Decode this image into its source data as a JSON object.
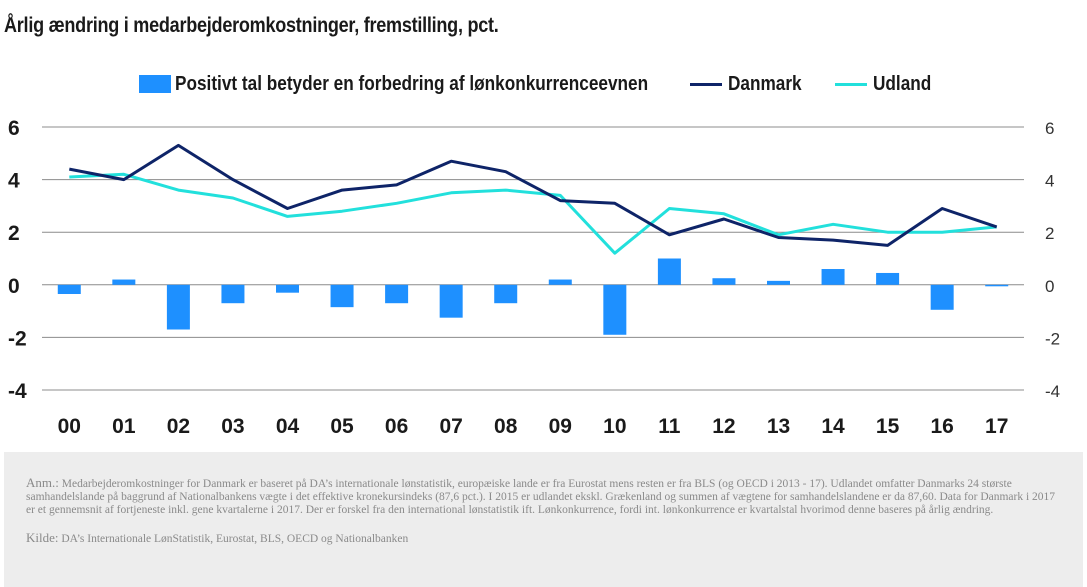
{
  "title": "Årlig ændring i medarbejderomkostninger, fremstilling, pct.",
  "legend": {
    "bar_label": "Positivt tal betyder en forbedring af lønkonkurrenceevnen",
    "line1_label": "Danmark",
    "line2_label": "Udland"
  },
  "colors": {
    "bars": "#1e90ff",
    "danmark": "#0e2468",
    "udland": "#22e0dc",
    "grid": "#8c8c8c"
  },
  "chart_data": {
    "type": "bar",
    "categories": [
      "00",
      "01",
      "02",
      "03",
      "04",
      "05",
      "06",
      "07",
      "08",
      "09",
      "10",
      "11",
      "12",
      "13",
      "14",
      "15",
      "16",
      "17"
    ],
    "series": [
      {
        "name": "Positivt tal betyder en forbedring af lønkonkurrenceevnen",
        "type": "bar",
        "values": [
          -0.35,
          0.2,
          -1.7,
          -0.7,
          -0.3,
          -0.85,
          -0.7,
          -1.25,
          -0.7,
          0.2,
          -1.9,
          1.0,
          0.25,
          0.15,
          0.6,
          0.45,
          -0.95,
          -0.05
        ]
      },
      {
        "name": "Danmark",
        "type": "line",
        "values": [
          4.4,
          4.0,
          5.3,
          4.0,
          2.9,
          3.6,
          3.8,
          4.7,
          4.3,
          3.2,
          3.1,
          1.9,
          2.5,
          1.8,
          1.7,
          1.5,
          2.9,
          2.2
        ]
      },
      {
        "name": "Udland",
        "type": "line",
        "values": [
          4.1,
          4.2,
          3.6,
          3.3,
          2.6,
          2.8,
          3.1,
          3.5,
          3.6,
          3.4,
          1.2,
          2.9,
          2.7,
          1.9,
          2.3,
          2.0,
          2.0,
          2.2
        ]
      }
    ],
    "ylim": [
      -4,
      6
    ],
    "yticks_left": [
      "6",
      "4",
      "2",
      "0",
      "-2",
      "-4"
    ],
    "yticks_right": [
      "6",
      "4",
      "2",
      "0",
      "-2",
      "-4"
    ],
    "grid": true,
    "legend_position": "top"
  },
  "note": {
    "anm_label": "Anm.:",
    "anm_text": " Medarbejderomkostninger for Danmark er baseret på DA’s internationale lønstatistik, europæiske lande er fra Eurostat mens resten er fra BLS (og OECD i 2013 - 17). Udlandet omfatter Danmarks 24 største samhandelslande på baggrund af Nationalbankens vægte i det effektive kronekursindeks  (87,6 pct.). I 2015 er udlandet ekskl. Grækenland og summen af vægtene for samhandelslandene er da 87,60. Data for Danmark i 2017 er et gennemsnit af fortjeneste inkl. gene kvartalerne i 2017. Der er forskel fra den international lønstatistik ift. Lønkonkurrence, fordi int. lønkonkurrence er kvartalstal hvorimod denne baseres på årlig ændring.",
    "kilde_label": "Kilde:",
    "kilde_text": " DA’s Internationale LønStatistik, Eurostat, BLS, OECD og Nationalbanken"
  }
}
